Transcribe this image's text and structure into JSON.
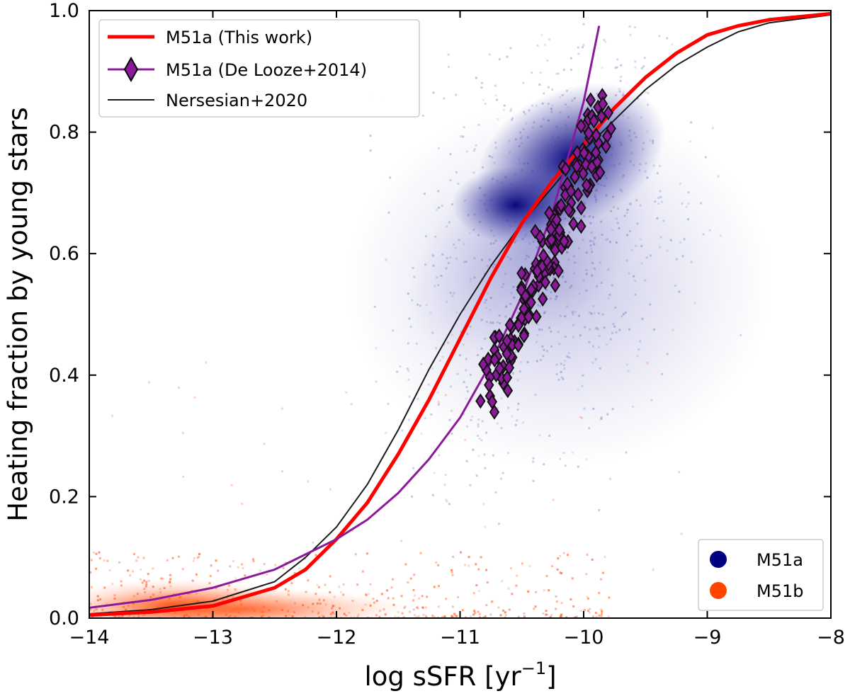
{
  "chart_data": {
    "type": "scatter",
    "title": "",
    "xlabel": "log sSFR [yr",
    "xlabel_sup": "−1",
    "xlabel_close": "]",
    "ylabel": "Heating fraction by young stars",
    "xlim": [
      -14,
      -8
    ],
    "ylim": [
      0.0,
      1.0
    ],
    "x_ticks": [
      -14,
      -13,
      -12,
      -11,
      -10,
      -9,
      -8
    ],
    "x_tick_labels": [
      "−14",
      "−13",
      "−12",
      "−11",
      "−10",
      "−9",
      "−8"
    ],
    "y_ticks": [
      0.0,
      0.2,
      0.4,
      0.6,
      0.8,
      1.0
    ],
    "y_tick_labels": [
      "0.0",
      "0.2",
      "0.4",
      "0.6",
      "0.8",
      "1.0"
    ],
    "grid": false,
    "series": [
      {
        "name": "M51a (This work)",
        "kind": "line",
        "color": "#ff0000",
        "x": [
          -14,
          -13.5,
          -13,
          -12.5,
          -12.25,
          -12,
          -11.75,
          -11.5,
          -11.25,
          -11,
          -10.75,
          -10.5,
          -10.25,
          -10,
          -9.75,
          -9.5,
          -9.25,
          -9,
          -8.75,
          -8.5,
          -8
        ],
        "y": [
          0.005,
          0.01,
          0.02,
          0.05,
          0.08,
          0.13,
          0.19,
          0.27,
          0.36,
          0.46,
          0.56,
          0.65,
          0.72,
          0.78,
          0.84,
          0.89,
          0.93,
          0.96,
          0.975,
          0.985,
          0.995
        ]
      },
      {
        "name": "M51a (De Looze+2014)",
        "kind": "line+diamonds",
        "color": "#8b1a9a",
        "x": [
          -14,
          -13.5,
          -13,
          -12.5,
          -12,
          -11.75,
          -11.5,
          -11.25,
          -11,
          -10.75,
          -10.5,
          -10.25,
          -10,
          -9.875
        ],
        "y": [
          0.017,
          0.03,
          0.05,
          0.08,
          0.13,
          0.162,
          0.206,
          0.262,
          0.33,
          0.42,
          0.53,
          0.67,
          0.85,
          0.975
        ]
      },
      {
        "name": "Nersesian+2020",
        "kind": "line",
        "color": "#1a1a1a",
        "x": [
          -14,
          -13.5,
          -13,
          -12.5,
          -12.25,
          -12,
          -11.75,
          -11.5,
          -11.25,
          -11,
          -10.75,
          -10.5,
          -10.25,
          -10,
          -9.75,
          -9.5,
          -9.25,
          -9,
          -8.75,
          -8.5,
          -8
        ],
        "y": [
          0.007,
          0.014,
          0.028,
          0.06,
          0.1,
          0.15,
          0.22,
          0.31,
          0.41,
          0.5,
          0.58,
          0.65,
          0.71,
          0.77,
          0.82,
          0.87,
          0.91,
          0.94,
          0.965,
          0.98,
          0.993
        ]
      }
    ],
    "density_clouds": [
      {
        "name": "M51a",
        "color": "#00007a",
        "peak": [
          -10.1,
          0.76
        ]
      },
      {
        "name": "M51b",
        "color": "#ff4500",
        "peak": [
          -12.8,
          0.02
        ]
      }
    ],
    "legend": [
      {
        "label": "M51a (This work)",
        "color": "#ff0000",
        "marker": "line-thick"
      },
      {
        "label": "M51a (De Looze+2014)",
        "color": "#8b1a9a",
        "marker": "line-diamond"
      },
      {
        "label": "Nersesian+2020",
        "color": "#1a1a1a",
        "marker": "line-thin"
      }
    ],
    "legend_position": "top-left",
    "legend2": [
      {
        "label": "M51a",
        "color": "#000080"
      },
      {
        "label": "M51b",
        "color": "#ff4500"
      }
    ],
    "legend2_position": "bottom-right"
  }
}
